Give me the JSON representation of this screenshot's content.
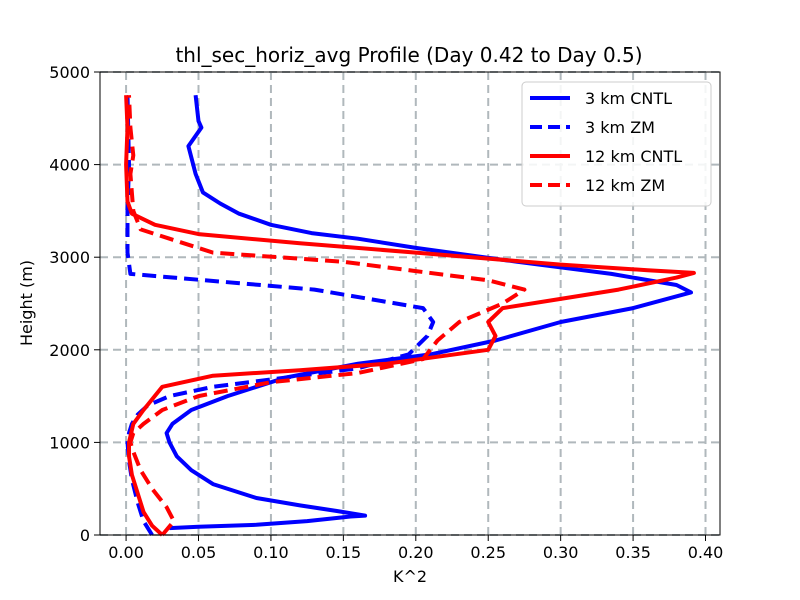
{
  "chart_data": {
    "type": "line",
    "title": "thl_sec_horiz_avg Profile (Day 0.42 to Day 0.5)",
    "xlabel": "K^2",
    "ylabel": "Height (m)",
    "xlim": [
      -0.018,
      0.41
    ],
    "ylim": [
      0,
      5000
    ],
    "xticks": [
      0.0,
      0.05,
      0.1,
      0.15,
      0.2,
      0.25,
      0.3,
      0.35,
      0.4
    ],
    "xtick_labels": [
      "0.00",
      "0.05",
      "0.10",
      "0.15",
      "0.20",
      "0.25",
      "0.30",
      "0.35",
      "0.40"
    ],
    "yticks": [
      0,
      1000,
      2000,
      3000,
      4000,
      5000
    ],
    "ytick_labels": [
      "0",
      "1000",
      "2000",
      "3000",
      "4000",
      "5000"
    ],
    "grid": true,
    "legend_position": "top-right",
    "series": [
      {
        "name": "3 km CNTL",
        "color": "#0000ff",
        "style": "solid",
        "x": [
          0.03,
          0.05,
          0.09,
          0.125,
          0.155,
          0.165,
          0.145,
          0.12,
          0.09,
          0.06,
          0.045,
          0.035,
          0.03,
          0.028,
          0.032,
          0.045,
          0.07,
          0.11,
          0.16,
          0.21,
          0.255,
          0.3,
          0.35,
          0.39,
          0.38,
          0.335,
          0.27,
          0.2,
          0.16,
          0.128,
          0.1,
          0.078,
          0.065,
          0.053,
          0.048,
          0.043,
          0.052,
          0.05,
          0.048
        ],
        "y": [
          75,
          90,
          110,
          150,
          200,
          210,
          260,
          320,
          400,
          550,
          700,
          850,
          1000,
          1100,
          1200,
          1350,
          1500,
          1700,
          1850,
          1950,
          2100,
          2300,
          2450,
          2620,
          2700,
          2820,
          2950,
          3100,
          3200,
          3260,
          3350,
          3470,
          3580,
          3700,
          3900,
          4200,
          4400,
          4470,
          4750
        ]
      },
      {
        "name": "3 km ZM",
        "color": "#0000ff",
        "style": "dashed",
        "x": [
          0.018,
          0.012,
          0.008,
          0.004,
          0.002,
          0.001,
          0.002,
          0.004,
          0.008,
          0.015,
          0.03,
          0.06,
          0.11,
          0.16,
          0.195,
          0.208,
          0.212,
          0.205,
          0.13,
          0.04,
          0.003,
          0.001,
          0.001,
          0.002,
          0.001
        ],
        "y": [
          0,
          150,
          350,
          600,
          800,
          1000,
          1100,
          1200,
          1300,
          1400,
          1500,
          1600,
          1700,
          1800,
          1950,
          2150,
          2300,
          2450,
          2650,
          2770,
          2820,
          3050,
          3500,
          4000,
          4750
        ]
      },
      {
        "name": "12 km CNTL",
        "color": "#ff0000",
        "style": "solid",
        "x": [
          0.025,
          0.018,
          0.012,
          0.008,
          0.004,
          0.002,
          0.002,
          0.005,
          0.012,
          0.025,
          0.06,
          0.12,
          0.18,
          0.25,
          0.255,
          0.25,
          0.26,
          0.3,
          0.34,
          0.38,
          0.392,
          0.36,
          0.3,
          0.2,
          0.12,
          0.05,
          0.02,
          0.004,
          0.001,
          0.0,
          0.001,
          0.0
        ],
        "y": [
          0,
          100,
          250,
          450,
          650,
          850,
          1000,
          1200,
          1350,
          1600,
          1720,
          1780,
          1850,
          2000,
          2150,
          2300,
          2450,
          2550,
          2650,
          2780,
          2830,
          2860,
          2920,
          3050,
          3150,
          3250,
          3350,
          3470,
          3600,
          4000,
          4400,
          4750
        ]
      },
      {
        "name": "12 km ZM",
        "color": "#ff0000",
        "style": "dashed",
        "x": [
          0.025,
          0.033,
          0.028,
          0.018,
          0.01,
          0.005,
          0.003,
          0.005,
          0.012,
          0.025,
          0.05,
          0.1,
          0.16,
          0.205,
          0.215,
          0.23,
          0.26,
          0.275,
          0.25,
          0.2,
          0.15,
          0.06,
          0.03,
          0.01,
          0.005,
          0.003,
          0.005,
          0.003,
          0.002
        ],
        "y": [
          0,
          150,
          300,
          500,
          700,
          900,
          1000,
          1100,
          1200,
          1350,
          1500,
          1650,
          1750,
          1900,
          2100,
          2300,
          2500,
          2650,
          2750,
          2850,
          2950,
          3050,
          3200,
          3300,
          3500,
          3900,
          4100,
          4400,
          4750
        ]
      }
    ]
  }
}
